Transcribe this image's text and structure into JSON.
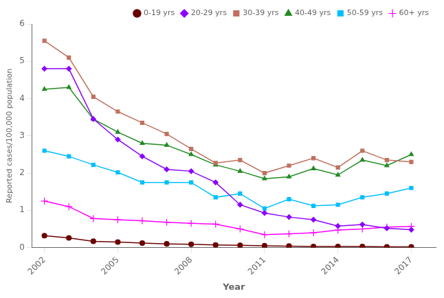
{
  "chart_data": {
    "type": "line",
    "x": [
      2002,
      2003,
      2004,
      2005,
      2006,
      2007,
      2008,
      2009,
      2010,
      2011,
      2012,
      2013,
      2014,
      2015,
      2016,
      2017
    ],
    "series": [
      {
        "name": "0-19 yrs",
        "color": "#6B0000",
        "marker": "circle",
        "values": [
          0.32,
          0.26,
          0.17,
          0.15,
          0.12,
          0.1,
          0.09,
          0.07,
          0.06,
          0.05,
          0.04,
          0.03,
          0.03,
          0.03,
          0.02,
          0.02
        ]
      },
      {
        "name": "20-29 yrs",
        "color": "#8B00FF",
        "marker": "diamond",
        "values": [
          4.8,
          4.8,
          3.45,
          2.9,
          2.45,
          2.1,
          2.05,
          1.75,
          1.15,
          0.93,
          0.82,
          0.75,
          0.58,
          0.62,
          0.52,
          0.48
        ]
      },
      {
        "name": "30-39 yrs",
        "color": "#C07060",
        "marker": "square",
        "values": [
          5.55,
          5.1,
          4.05,
          3.65,
          3.35,
          3.05,
          2.65,
          2.27,
          2.35,
          2.0,
          2.2,
          2.4,
          2.15,
          2.6,
          2.35,
          2.3
        ]
      },
      {
        "name": "40-49 yrs",
        "color": "#228B22",
        "marker": "triangle",
        "values": [
          4.25,
          4.3,
          3.45,
          3.1,
          2.8,
          2.75,
          2.5,
          2.22,
          2.05,
          1.85,
          1.9,
          2.12,
          1.95,
          2.35,
          2.2,
          2.5
        ]
      },
      {
        "name": "50-59 yrs",
        "color": "#00BFFF",
        "marker": "square",
        "values": [
          2.6,
          2.45,
          2.22,
          2.02,
          1.75,
          1.75,
          1.75,
          1.35,
          1.45,
          1.05,
          1.3,
          1.12,
          1.15,
          1.35,
          1.45,
          1.6
        ]
      },
      {
        "name": "60+ yrs",
        "color": "#FF00FF",
        "marker": "plus",
        "values": [
          1.25,
          1.1,
          0.78,
          0.75,
          0.72,
          0.68,
          0.65,
          0.63,
          0.5,
          0.35,
          0.37,
          0.4,
          0.47,
          0.5,
          0.55,
          0.57
        ]
      }
    ],
    "xlabel": "Year",
    "ylabel": "Reported cases/100,000 population",
    "xlim": [
      2001.5,
      2018.0
    ],
    "xticks": [
      2002,
      2005,
      2008,
      2011,
      2014,
      2017
    ],
    "ylim": [
      0,
      6
    ],
    "yticks": [
      0,
      1,
      2,
      3,
      4,
      5,
      6
    ],
    "grid": false,
    "legend": "upper right"
  }
}
